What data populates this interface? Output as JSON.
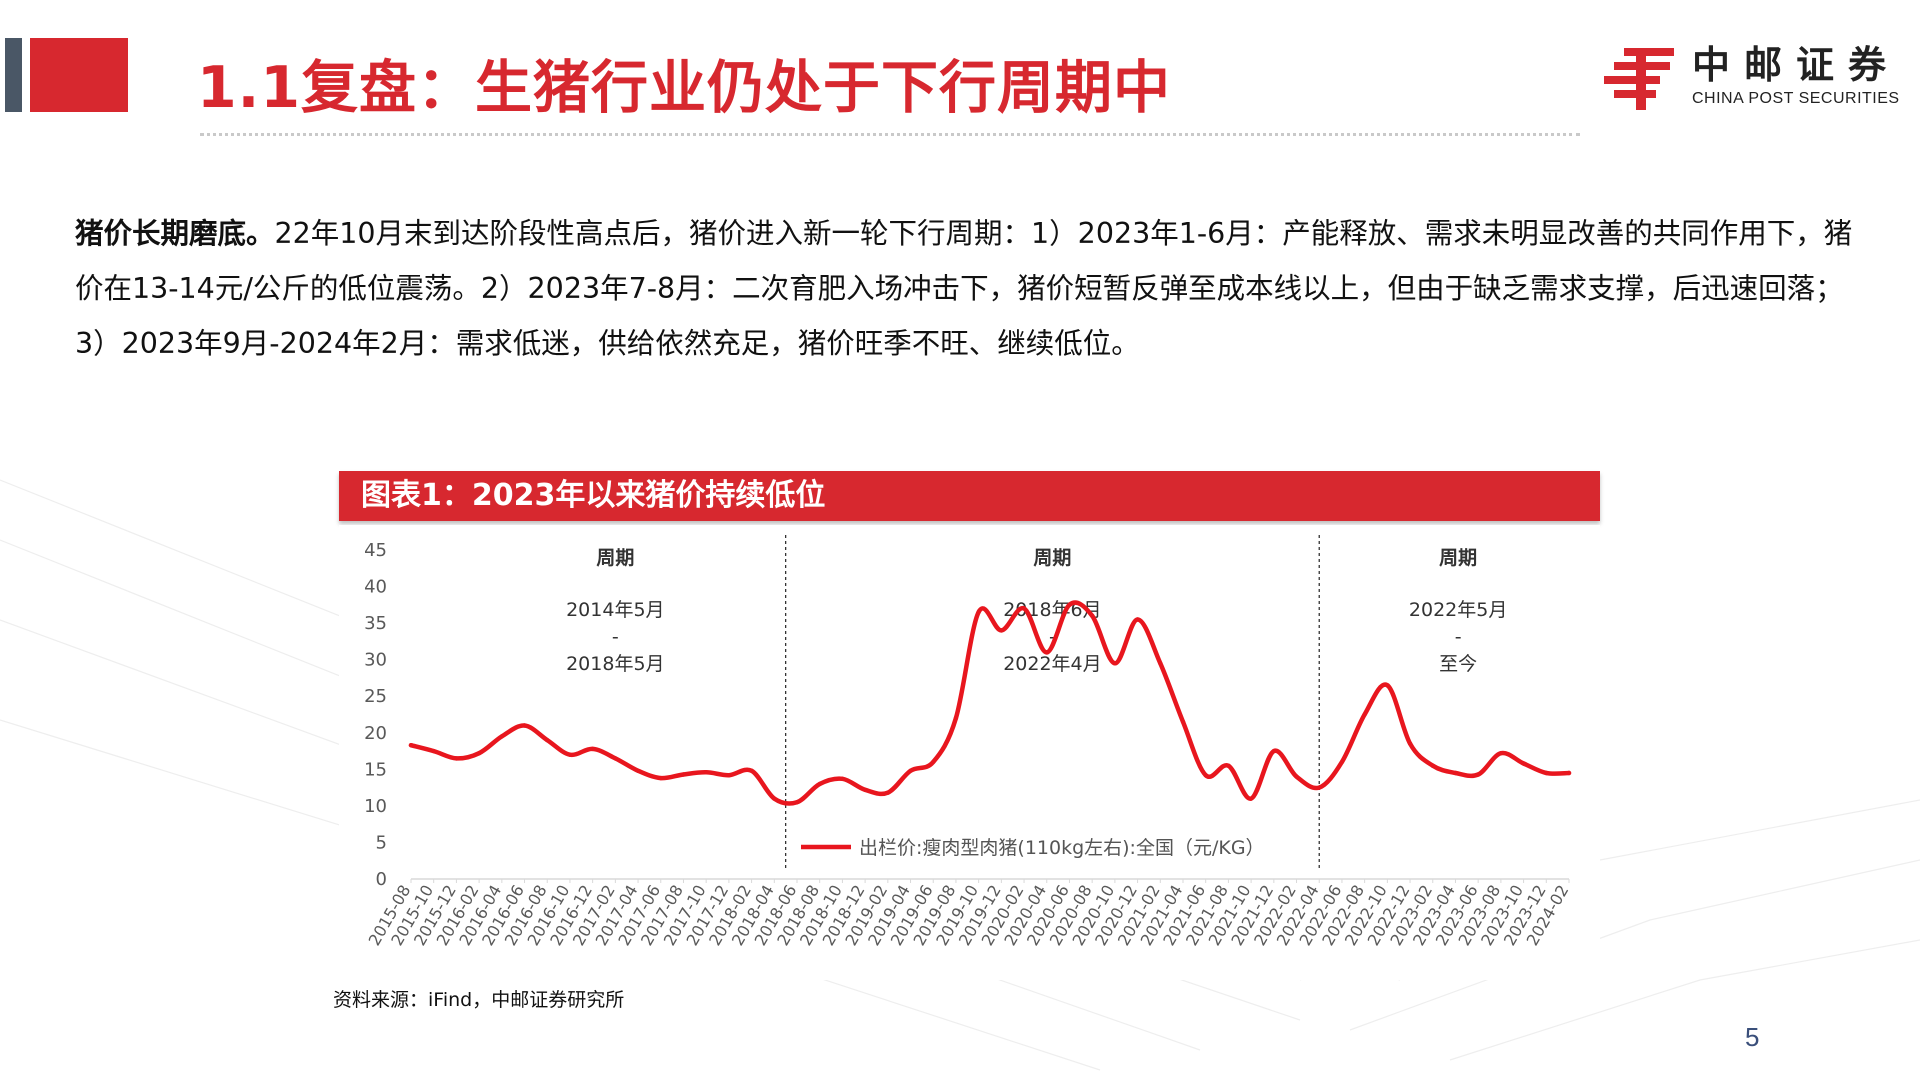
{
  "header": {
    "title": "1.1复盘：生猪行业仍处于下行周期中",
    "logo_cn": "中邮证券",
    "logo_en": "CHINA POST SECURITIES",
    "accent_color": "#d7282f"
  },
  "intro": {
    "lead": "猪价长期磨底。",
    "body": "22年10月末到达阶段性高点后，猪价进入新一轮下行周期：1）2023年1-6月：产能释放、需求未明显改善的共同作用下，猪价在13-14元/公斤的低位震荡。2）2023年7-8月：二次育肥入场冲击下，猪价短暂反弹至成本线以上，但由于缺乏需求支撑，后迅速回落；3）2023年9月-2024年2月：需求低迷，供给依然充足，猪价旺季不旺、继续低位。"
  },
  "chart_title": "图表1：2023年以来猪价持续低位",
  "source": "资料来源：iFind，中邮证券研究所",
  "page_number": "5",
  "chart_data": {
    "type": "line",
    "title": "图表1：2023年以来猪价持续低位",
    "ylim": [
      0,
      45
    ],
    "yticks": [
      0,
      5,
      10,
      15,
      20,
      25,
      30,
      35,
      40,
      45
    ],
    "grid": false,
    "legend_position": "bottom-center",
    "x_tick_labels": [
      "2015-08",
      "2015-10",
      "2015-12",
      "2016-02",
      "2016-04",
      "2016-06",
      "2016-08",
      "2016-10",
      "2016-12",
      "2017-02",
      "2017-04",
      "2017-06",
      "2017-08",
      "2017-10",
      "2017-12",
      "2018-02",
      "2018-04",
      "2018-06",
      "2018-08",
      "2018-10",
      "2018-12",
      "2019-02",
      "2019-04",
      "2019-06",
      "2019-08",
      "2019-10",
      "2019-12",
      "2020-02",
      "2020-04",
      "2020-06",
      "2020-08",
      "2020-10",
      "2020-12",
      "2021-02",
      "2021-04",
      "2021-06",
      "2021-08",
      "2021-10",
      "2021-12",
      "2022-02",
      "2022-04",
      "2022-06",
      "2022-08",
      "2022-10",
      "2022-12",
      "2023-02",
      "2023-04",
      "2023-06",
      "2023-08",
      "2023-10",
      "2023-12",
      "2024-02"
    ],
    "series": [
      {
        "name": "出栏价:瘦肉型肉猪(110kg左右):全国（元/KG）",
        "color": "#e8161e",
        "x": [
          "2015-08",
          "2015-10",
          "2015-12",
          "2016-02",
          "2016-04",
          "2016-06",
          "2016-08",
          "2016-10",
          "2016-12",
          "2017-02",
          "2017-04",
          "2017-06",
          "2017-08",
          "2017-10",
          "2017-12",
          "2018-02",
          "2018-04",
          "2018-06",
          "2018-08",
          "2018-10",
          "2018-12",
          "2019-02",
          "2019-04",
          "2019-06",
          "2019-08",
          "2019-10",
          "2019-12",
          "2020-02",
          "2020-04",
          "2020-06",
          "2020-08",
          "2020-10",
          "2020-12",
          "2021-02",
          "2021-04",
          "2021-06",
          "2021-08",
          "2021-10",
          "2021-12",
          "2022-02",
          "2022-04",
          "2022-06",
          "2022-08",
          "2022-10",
          "2022-12",
          "2023-02",
          "2023-04",
          "2023-06",
          "2023-08",
          "2023-10",
          "2023-12",
          "2024-02"
        ],
        "values": [
          18.3,
          17.5,
          16.5,
          17.2,
          19.5,
          21.0,
          19.0,
          17.0,
          17.8,
          16.5,
          14.8,
          13.8,
          14.3,
          14.6,
          14.2,
          14.8,
          11.0,
          10.5,
          13.0,
          13.7,
          12.2,
          11.8,
          14.8,
          16.0,
          22.0,
          36.5,
          34.0,
          37.0,
          31.0,
          37.5,
          36.0,
          29.5,
          35.5,
          29.5,
          21.5,
          14.2,
          15.5,
          11.0,
          17.5,
          14.0,
          12.5,
          16.0,
          22.5,
          26.5,
          18.5,
          15.5,
          14.5,
          14.3,
          17.2,
          15.8,
          14.5,
          14.5
        ]
      }
    ],
    "cycles": [
      {
        "label": "周期",
        "start": "2014年5月",
        "sep": "-",
        "end": "2018年5月"
      },
      {
        "label": "周期",
        "start": "2018年6月",
        "sep": "-",
        "end": "2022年4月"
      },
      {
        "label": "周期",
        "start": "2022年5月",
        "sep": "-",
        "end": "至今"
      }
    ]
  }
}
